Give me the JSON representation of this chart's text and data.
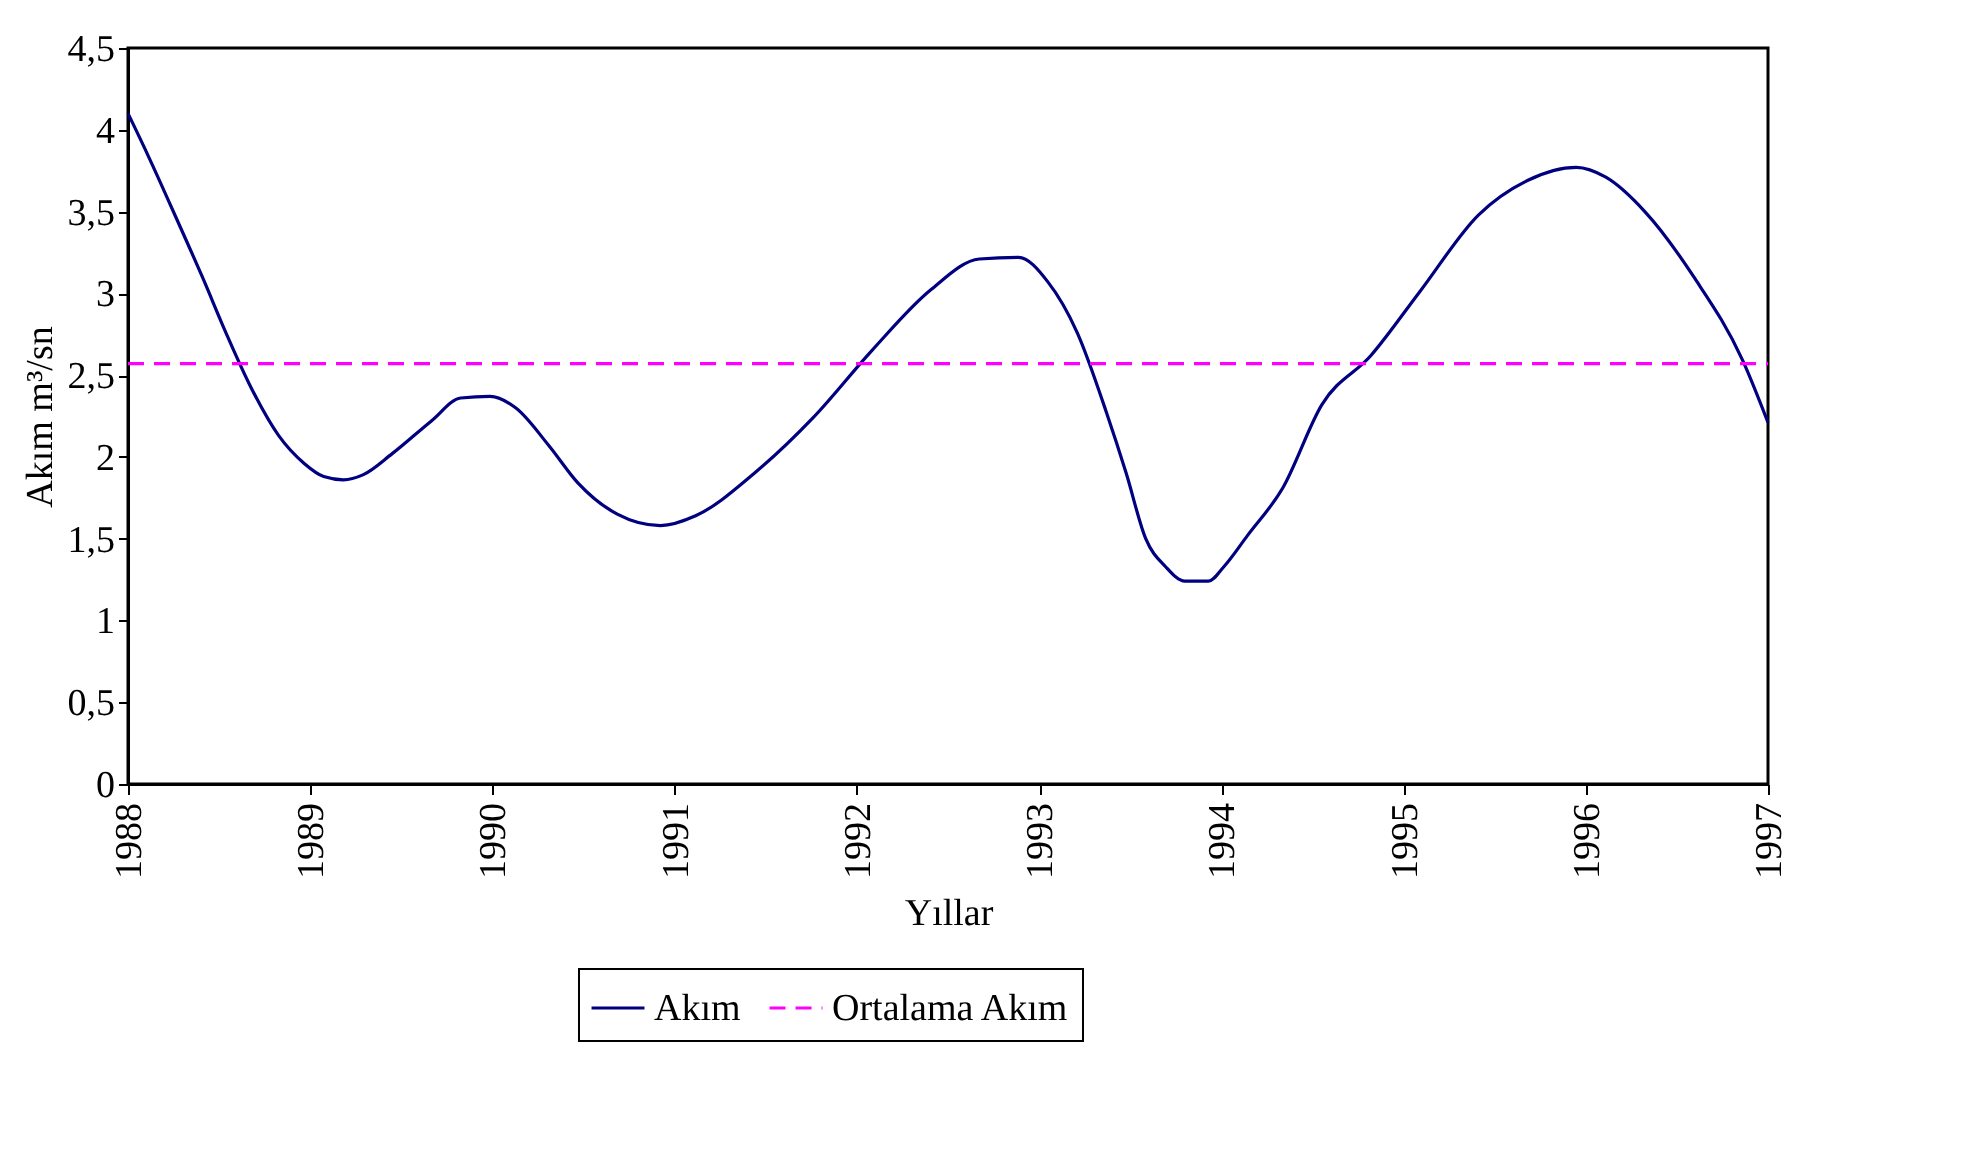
{
  "chart_data": {
    "type": "line",
    "xlabel": "Yıllar",
    "ylabel": "Akım m³/sn",
    "xlim": [
      1988,
      1997
    ],
    "xticks": [
      1988,
      1989,
      1990,
      1991,
      1992,
      1993,
      1994,
      1995,
      1996,
      1997
    ],
    "ylim": [
      0,
      4.5
    ],
    "yticks": [
      0,
      {
        "value": 0.5,
        "label": "0,5"
      },
      1,
      {
        "value": 1.5,
        "label": "1,5"
      },
      2,
      {
        "value": 2.5,
        "label": "2,5"
      },
      3,
      {
        "value": 3.5,
        "label": "3,5"
      },
      4,
      {
        "value": 4.5,
        "label": "4,5"
      }
    ],
    "grid": false,
    "legend": "bottom",
    "marker": "none",
    "series": [
      {
        "name": "Akım",
        "color": "#000080",
        "line_style": "solid",
        "x": [
          1988,
          1988.107,
          1988.269,
          1988.408,
          1988.537,
          1988.677,
          1988.827,
          1988.967,
          1989.074,
          1989.182,
          1989.289,
          1989.45,
          1989.665,
          1989.826,
          1989.987,
          1990.127,
          1990.309,
          1990.47,
          1990.685,
          1990.922,
          1991.115,
          1991.437,
          1991.76,
          1992.082,
          1992.404,
          1992.672,
          1992.887,
          1993.048,
          1993.209,
          1993.37,
          1993.478,
          1993.585,
          1993.693,
          1993.8,
          1993.929,
          1994.015,
          1994.144,
          1994.337,
          1994.552,
          1994.821,
          1995.089,
          1995.412,
          1995.68,
          1995.948,
          1996.11,
          1996.324,
          1996.593,
          1996.861,
          1997
        ],
        "values": [
          4.1,
          3.85,
          3.45,
          3.1,
          2.76,
          2.42,
          2.13,
          1.96,
          1.88,
          1.86,
          1.89,
          2.02,
          2.22,
          2.36,
          2.37,
          2.3,
          2.07,
          1.84,
          1.65,
          1.58,
          1.64,
          1.9,
          2.24,
          2.65,
          3.02,
          3.21,
          3.22,
          3.07,
          2.76,
          2.27,
          1.9,
          1.5,
          1.33,
          1.24,
          1.24,
          1.33,
          1.52,
          1.81,
          2.32,
          2.62,
          3.01,
          3.48,
          3.69,
          3.77,
          3.71,
          3.5,
          3.1,
          2.59,
          2.21
        ]
      },
      {
        "name": "Ortalama Akım",
        "color": "#ff00ff",
        "line_style": "dashed",
        "x": [
          1988,
          1997
        ],
        "values": [
          2.57,
          2.57
        ]
      }
    ]
  }
}
